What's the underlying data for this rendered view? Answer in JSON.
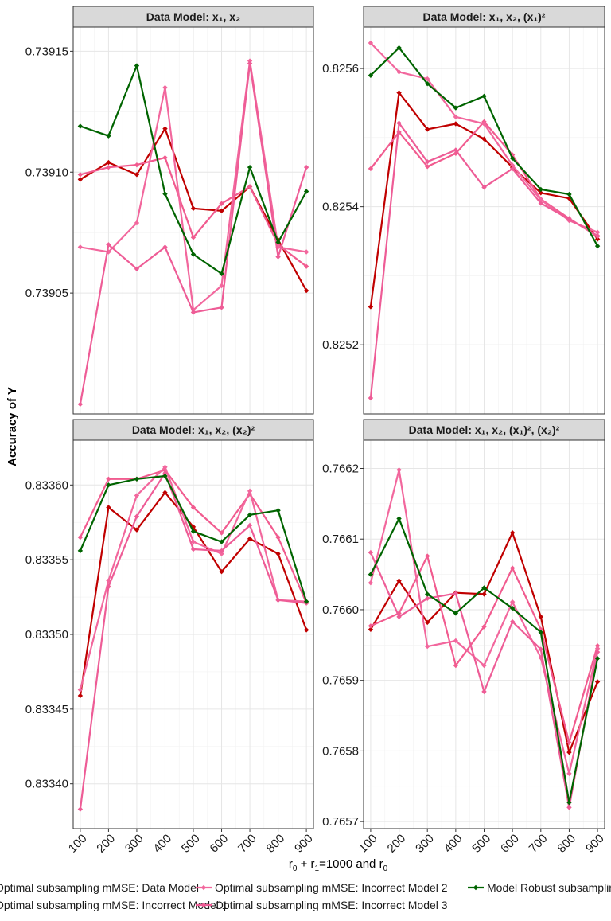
{
  "chart_data": [
    {
      "type": "line",
      "title": "Data Model: x₁, x₂",
      "x": [
        100,
        200,
        300,
        400,
        500,
        600,
        700,
        800,
        900
      ],
      "ylim": [
        0.739,
        0.73916
      ],
      "yticks": [
        0.73905,
        0.7391,
        0.73915
      ],
      "ytick_labels": [
        "0.73905",
        "0.73910",
        "0.73915"
      ],
      "series": [
        {
          "name": "Optimal subsampling mMSE: Data Model",
          "color": "#c00000",
          "values": [
            0.739097,
            0.739104,
            0.739099,
            0.739118,
            0.739085,
            0.739084,
            0.739094,
            0.739072,
            0.739051
          ]
        },
        {
          "name": "Optimal subsampling mMSE: Incorrect Model 1",
          "color": "#f15b8f",
          "values": [
            0.739099,
            0.739102,
            0.739103,
            0.739106,
            0.739073,
            0.739087,
            0.739094,
            0.73907,
            0.739061
          ]
        },
        {
          "name": "Optimal subsampling mMSE: Incorrect Model 2",
          "color": "#f2679d",
          "values": [
            0.739069,
            0.739067,
            0.739079,
            0.739135,
            0.739043,
            0.739053,
            0.739146,
            0.739069,
            0.739067
          ]
        },
        {
          "name": "Optimal subsampling mMSE: Incorrect Model 3",
          "color": "#ee5c96",
          "values": [
            0.739004,
            0.73907,
            0.73906,
            0.739069,
            0.739042,
            0.739044,
            0.739145,
            0.739065,
            0.739102
          ]
        },
        {
          "name": "Model Robust subsampling",
          "color": "#006400",
          "values": [
            0.739119,
            0.739115,
            0.739144,
            0.739091,
            0.739066,
            0.739058,
            0.739102,
            0.739071,
            0.739092
          ]
        }
      ]
    },
    {
      "type": "line",
      "title": "Data Model: x₁, x₂, (x₁)²",
      "x": [
        100,
        200,
        300,
        400,
        500,
        600,
        700,
        800,
        900
      ],
      "ylim": [
        0.8251,
        0.82566
      ],
      "yticks": [
        0.8252,
        0.8254,
        0.8256
      ],
      "ytick_labels": [
        "0.8252",
        "0.8254",
        "0.8256"
      ],
      "series": [
        {
          "name": "Optimal subsampling mMSE: Data Model",
          "color": "#c00000",
          "values": [
            0.825255,
            0.825565,
            0.825512,
            0.82552,
            0.825498,
            0.825457,
            0.82542,
            0.825412,
            0.825353
          ]
        },
        {
          "name": "Optimal subsampling mMSE: Incorrect Model 1",
          "color": "#f15b8f",
          "values": [
            0.825455,
            0.825508,
            0.825458,
            0.825477,
            0.825523,
            0.825475,
            0.825411,
            0.825383,
            0.825357
          ]
        },
        {
          "name": "Optimal subsampling mMSE: Incorrect Model 2",
          "color": "#f2679d",
          "values": [
            0.825637,
            0.825595,
            0.825585,
            0.82553,
            0.82552,
            0.82546,
            0.82541,
            0.82538,
            0.825363
          ]
        },
        {
          "name": "Optimal subsampling mMSE: Incorrect Model 3",
          "color": "#ee5c96",
          "values": [
            0.825123,
            0.825521,
            0.825465,
            0.825482,
            0.825428,
            0.825455,
            0.825405,
            0.825382,
            0.825358
          ]
        },
        {
          "name": "Model Robust subsampling",
          "color": "#006400",
          "values": [
            0.82559,
            0.82563,
            0.825578,
            0.825543,
            0.82556,
            0.82547,
            0.825425,
            0.825418,
            0.825343
          ]
        }
      ]
    },
    {
      "type": "line",
      "title": "Data Model: x₁, x₂, (x₂)²",
      "x": [
        100,
        200,
        300,
        400,
        500,
        600,
        700,
        800,
        900
      ],
      "ylim": [
        0.83337,
        0.83363
      ],
      "yticks": [
        0.8334,
        0.83345,
        0.8335,
        0.83355,
        0.8336
      ],
      "ytick_labels": [
        "0.83340",
        "0.83345",
        "0.83350",
        "0.83355",
        "0.83360"
      ],
      "series": [
        {
          "name": "Optimal subsampling mMSE: Data Model",
          "color": "#c00000",
          "values": [
            0.833459,
            0.833585,
            0.83357,
            0.833595,
            0.833572,
            0.833542,
            0.833564,
            0.833554,
            0.833503
          ]
        },
        {
          "name": "Optimal subsampling mMSE: Incorrect Model 1",
          "color": "#f15b8f",
          "values": [
            0.833565,
            0.833604,
            0.833604,
            0.83361,
            0.833585,
            0.833568,
            0.833594,
            0.833565,
            0.833521
          ]
        },
        {
          "name": "Optimal subsampling mMSE: Incorrect Model 2",
          "color": "#f2679d",
          "values": [
            0.833463,
            0.833536,
            0.833593,
            0.833612,
            0.833562,
            0.833554,
            0.833596,
            0.833523,
            0.833522
          ]
        },
        {
          "name": "Optimal subsampling mMSE: Incorrect Model 3",
          "color": "#ee5c96",
          "values": [
            0.833383,
            0.833532,
            0.833579,
            0.833608,
            0.833557,
            0.833556,
            0.833573,
            0.833523,
            0.833521
          ]
        },
        {
          "name": "Model Robust subsampling",
          "color": "#006400",
          "values": [
            0.833556,
            0.8336,
            0.833604,
            0.833606,
            0.833569,
            0.833562,
            0.83358,
            0.833583,
            0.833522
          ]
        }
      ]
    },
    {
      "type": "line",
      "title": "Data Model: x₁, x₂, (x₁)², (x₂)²",
      "x": [
        100,
        200,
        300,
        400,
        500,
        600,
        700,
        800,
        900
      ],
      "ylim": [
        0.76569,
        0.76624
      ],
      "yticks": [
        0.7657,
        0.7658,
        0.7659,
        0.766,
        0.7661,
        0.7662
      ],
      "ytick_labels": [
        "0.7657",
        "0.7658",
        "0.7659",
        "0.7660",
        "0.7661",
        "0.7662"
      ],
      "series": [
        {
          "name": "Optimal subsampling mMSE: Data Model",
          "color": "#c00000",
          "values": [
            0.765972,
            0.766041,
            0.765982,
            0.766024,
            0.766022,
            0.766109,
            0.76599,
            0.765798,
            0.765898
          ]
        },
        {
          "name": "Optimal subsampling mMSE: Incorrect Model 1",
          "color": "#f15b8f",
          "values": [
            0.765977,
            0.765995,
            0.766076,
            0.765921,
            0.765976,
            0.766059,
            0.765972,
            0.765812,
            0.765949
          ]
        },
        {
          "name": "Optimal subsampling mMSE: Incorrect Model 2",
          "color": "#f2679d",
          "values": [
            0.766038,
            0.766198,
            0.765948,
            0.765956,
            0.765921,
            0.766011,
            0.765932,
            0.765768,
            0.765945
          ]
        },
        {
          "name": "Optimal subsampling mMSE: Incorrect Model 3",
          "color": "#ee5c96",
          "values": [
            0.766081,
            0.76599,
            0.766016,
            0.766023,
            0.765884,
            0.765983,
            0.765944,
            0.76572,
            0.76594
          ]
        },
        {
          "name": "Model Robust subsampling",
          "color": "#006400",
          "values": [
            0.76605,
            0.766129,
            0.766022,
            0.765995,
            0.766031,
            0.766002,
            0.765968,
            0.765727,
            0.765931
          ]
        }
      ]
    }
  ],
  "axes": {
    "ylabel": "Accuracy of Y",
    "xlabel": "r₀ + r₁=1000 and r₀",
    "xtick_labels": [
      "100",
      "200",
      "300",
      "400",
      "500",
      "600",
      "700",
      "800",
      "900"
    ]
  },
  "legend": {
    "position": "bottom",
    "items": [
      {
        "label": "Optimal subsampling mMSE: Data Model",
        "color": "#c00000"
      },
      {
        "label": "Optimal subsampling mMSE: Incorrect Model 1",
        "color": "#f15b8f"
      },
      {
        "label": "Optimal subsampling mMSE: Incorrect Model 2",
        "color": "#f2679d"
      },
      {
        "label": "Optimal subsampling mMSE: Incorrect Model 3",
        "color": "#ee5c96"
      },
      {
        "label": "Model Robust subsampling",
        "color": "#006400"
      }
    ]
  }
}
